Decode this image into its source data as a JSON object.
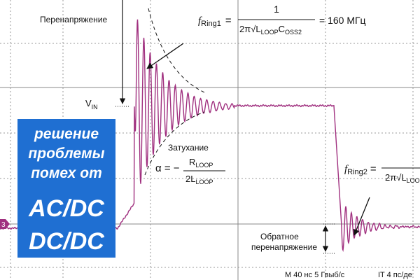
{
  "labels": {
    "overvoltage": "Перенапряжение",
    "vin_main": "V",
    "vin_sub": "IN",
    "damping": "Затухание",
    "reverse_1": "Обратное",
    "reverse_2": "перенапряжение",
    "status_left": "M 40 нс 5 Гвыб/с",
    "status_right": "IT 4 пс/де",
    "channel": "3"
  },
  "formula_ring1": {
    "f": "f",
    "f_sub": "Ring1",
    "eq": "=",
    "num": "1",
    "den_a": "2π√L",
    "den_sub1": "LOOP",
    "den_b": "C",
    "den_sub2": "OSS2",
    "result": "= 160 МГц"
  },
  "formula_damping": {
    "lhs": "α = −",
    "num": "R",
    "num_sub": "LOOP",
    "den": "2L",
    "den_sub": "LOOP"
  },
  "formula_ring2": {
    "f": "f",
    "f_sub": "Ring2",
    "eq": "=",
    "den_a": "2π√L",
    "den_sub1": "LOO"
  },
  "banner": {
    "line1": "решение",
    "line2": "проблемы",
    "line3": "помех от",
    "line4": "AC/DC",
    "line5": "DC/DC"
  }
}
